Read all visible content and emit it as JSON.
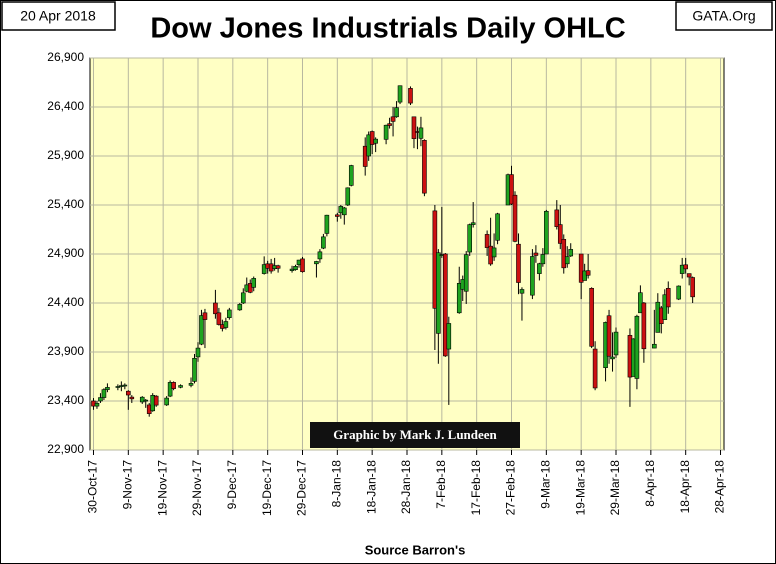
{
  "chart_data": {
    "type": "candlestick",
    "title": "Dow Jones Industrials Daily OHLC",
    "date_label": "20 Apr 2018",
    "source_label": "GATA.Org",
    "credit": "Graphic by Mark J. Lundeen",
    "xlabel": "Source Barron's",
    "up_color": "#1fa31f",
    "down_color": "#cc1111",
    "grid": true,
    "ylim": [
      22900,
      26900
    ],
    "yticks": [
      {
        "value": 22900,
        "label": "22,900"
      },
      {
        "value": 23400,
        "label": "23,400"
      },
      {
        "value": 23900,
        "label": "23,900"
      },
      {
        "value": 24400,
        "label": "24,400"
      },
      {
        "value": 24900,
        "label": "24,900"
      },
      {
        "value": 25400,
        "label": "25,400"
      },
      {
        "value": 25900,
        "label": "25,900"
      },
      {
        "value": 26400,
        "label": "26,400"
      },
      {
        "value": 26900,
        "label": "26,900"
      }
    ],
    "xlim": [
      "2017-10-29",
      "2018-04-29"
    ],
    "xticks": [
      {
        "value": "2017-10-30",
        "label": "30-Oct-17"
      },
      {
        "value": "2017-11-09",
        "label": "9-Nov-17"
      },
      {
        "value": "2017-11-19",
        "label": "19-Nov-17"
      },
      {
        "value": "2017-11-29",
        "label": "29-Nov-17"
      },
      {
        "value": "2017-12-09",
        "label": "9-Dec-17"
      },
      {
        "value": "2017-12-19",
        "label": "19-Dec-17"
      },
      {
        "value": "2017-12-29",
        "label": "29-Dec-17"
      },
      {
        "value": "2018-01-08",
        "label": "8-Jan-18"
      },
      {
        "value": "2018-01-18",
        "label": "18-Jan-18"
      },
      {
        "value": "2018-01-28",
        "label": "28-Jan-18"
      },
      {
        "value": "2018-02-07",
        "label": "7-Feb-18"
      },
      {
        "value": "2018-02-17",
        "label": "17-Feb-18"
      },
      {
        "value": "2018-02-27",
        "label": "27-Feb-18"
      },
      {
        "value": "2018-03-09",
        "label": "9-Mar-18"
      },
      {
        "value": "2018-03-19",
        "label": "19-Mar-18"
      },
      {
        "value": "2018-03-29",
        "label": "29-Mar-18"
      },
      {
        "value": "2018-04-08",
        "label": "8-Apr-18"
      },
      {
        "value": "2018-04-18",
        "label": "18-Apr-18"
      },
      {
        "value": "2018-04-28",
        "label": "28-Apr-18"
      }
    ],
    "x": [
      "2017-10-30",
      "2017-10-31",
      "2017-11-01",
      "2017-11-02",
      "2017-11-03",
      "2017-11-06",
      "2017-11-07",
      "2017-11-08",
      "2017-11-09",
      "2017-11-10",
      "2017-11-13",
      "2017-11-14",
      "2017-11-15",
      "2017-11-16",
      "2017-11-17",
      "2017-11-20",
      "2017-11-21",
      "2017-11-22",
      "2017-11-24",
      "2017-11-27",
      "2017-11-28",
      "2017-11-29",
      "2017-11-30",
      "2017-12-01",
      "2017-12-04",
      "2017-12-05",
      "2017-12-06",
      "2017-12-07",
      "2017-12-08",
      "2017-12-11",
      "2017-12-12",
      "2017-12-13",
      "2017-12-14",
      "2017-12-15",
      "2017-12-18",
      "2017-12-19",
      "2017-12-20",
      "2017-12-21",
      "2017-12-22",
      "2017-12-26",
      "2017-12-27",
      "2017-12-28",
      "2017-12-29",
      "2018-01-02",
      "2018-01-03",
      "2018-01-04",
      "2018-01-05",
      "2018-01-08",
      "2018-01-09",
      "2018-01-10",
      "2018-01-11",
      "2018-01-12",
      "2018-01-16",
      "2018-01-17",
      "2018-01-18",
      "2018-01-19",
      "2018-01-22",
      "2018-01-23",
      "2018-01-24",
      "2018-01-25",
      "2018-01-26",
      "2018-01-29",
      "2018-01-30",
      "2018-01-31",
      "2018-02-01",
      "2018-02-02",
      "2018-02-05",
      "2018-02-06",
      "2018-02-07",
      "2018-02-08",
      "2018-02-09",
      "2018-02-12",
      "2018-02-13",
      "2018-02-14",
      "2018-02-15",
      "2018-02-16",
      "2018-02-20",
      "2018-02-21",
      "2018-02-22",
      "2018-02-23",
      "2018-02-26",
      "2018-02-27",
      "2018-02-28",
      "2018-03-01",
      "2018-03-02",
      "2018-03-05",
      "2018-03-06",
      "2018-03-07",
      "2018-03-08",
      "2018-03-09",
      "2018-03-12",
      "2018-03-13",
      "2018-03-14",
      "2018-03-15",
      "2018-03-16",
      "2018-03-19",
      "2018-03-20",
      "2018-03-21",
      "2018-03-22",
      "2018-03-23",
      "2018-03-26",
      "2018-03-27",
      "2018-03-28",
      "2018-03-29",
      "2018-04-02",
      "2018-04-03",
      "2018-04-04",
      "2018-04-05",
      "2018-04-06",
      "2018-04-09",
      "2018-04-10",
      "2018-04-11",
      "2018-04-12",
      "2018-04-13",
      "2018-04-16",
      "2018-04-17",
      "2018-04-18",
      "2018-04-19",
      "2018-04-20"
    ],
    "open": [
      23400,
      23348,
      23400,
      23435,
      23516,
      23540,
      23550,
      23557,
      23500,
      23440,
      23390,
      23400,
      23360,
      23300,
      23450,
      23360,
      23450,
      23590,
      23540,
      23560,
      23600,
      23850,
      23980,
      24300,
      24400,
      24300,
      24180,
      24150,
      24250,
      24330,
      24400,
      24520,
      24600,
      24560,
      24700,
      24800,
      24800,
      24750,
      24780,
      24730,
      24740,
      24790,
      24850,
      24800,
      24850,
      24960,
      25110,
      25300,
      25320,
      25300,
      25400,
      25600,
      26000,
      25900,
      26150,
      26030,
      26070,
      26230,
      26300,
      26300,
      26450,
      26590,
      26300,
      26150,
      26080,
      26060,
      25340,
      24090,
      24890,
      24900,
      23930,
      24300,
      24540,
      24520,
      24920,
      25200,
      25100,
      24980,
      24870,
      25040,
      25400,
      25710,
      25500,
      25000,
      24500,
      24480,
      24910,
      24700,
      24800,
      24900,
      25350,
      25200,
      25050,
      24800,
      24880,
      24900,
      24630,
      24730,
      24550,
      23930,
      23740,
      24270,
      23830,
      23870,
      24070,
      23650,
      23630,
      24300,
      24400,
      23940,
      24100,
      24350,
      24230,
      24550,
      24440,
      24700,
      24790,
      24700,
      24660
    ],
    "high": [
      23430,
      23400,
      23480,
      23530,
      23580,
      23570,
      23600,
      23580,
      23510,
      23460,
      23450,
      23420,
      23380,
      23480,
      23460,
      23450,
      23610,
      23600,
      23570,
      23640,
      23880,
      24000,
      24330,
      24340,
      24534,
      24350,
      24230,
      24250,
      24350,
      24400,
      24550,
      24660,
      24640,
      24670,
      24876,
      24830,
      24850,
      24860,
      24790,
      24780,
      24790,
      24840,
      24870,
      24830,
      24950,
      25105,
      25300,
      25320,
      25400,
      25380,
      25580,
      25810,
      26090,
      26150,
      26160,
      26090,
      26220,
      26290,
      26400,
      26460,
      26620,
      26610,
      26300,
      26200,
      26300,
      26070,
      25400,
      24950,
      25380,
      24910,
      24260,
      24770,
      24680,
      24930,
      25210,
      25430,
      25140,
      25270,
      25110,
      25320,
      25720,
      25800,
      25540,
      25110,
      24560,
      24950,
      24990,
      24810,
      24960,
      25350,
      25450,
      25400,
      25100,
      24980,
      25010,
      24900,
      24800,
      24900,
      24560,
      24010,
      24210,
      24330,
      24100,
      24150,
      24140,
      24040,
      24280,
      24580,
      24410,
      24330,
      24500,
      24370,
      24540,
      24620,
      24580,
      24860,
      24860,
      24700,
      24670
    ],
    "low": [
      23310,
      23320,
      23380,
      23410,
      23490,
      23510,
      23500,
      23520,
      23310,
      23380,
      23370,
      23330,
      23240,
      23290,
      23340,
      23350,
      23440,
      23510,
      23530,
      23540,
      23580,
      23800,
      23970,
      23940,
      24240,
      24170,
      24110,
      24130,
      24230,
      24320,
      24390,
      24510,
      24500,
      24520,
      24690,
      24700,
      24700,
      24730,
      24710,
      24710,
      24730,
      24760,
      24710,
      24660,
      24810,
      24950,
      25080,
      25230,
      25260,
      25200,
      25390,
      25590,
      25700,
      25850,
      25920,
      25940,
      26020,
      26180,
      26100,
      26290,
      26430,
      26420,
      25980,
      25970,
      26000,
      25490,
      23920,
      23780,
      24860,
      23850,
      23360,
      24290,
      24420,
      24390,
      24880,
      25170,
      24880,
      24780,
      24830,
      25000,
      25400,
      25400,
      25020,
      24490,
      24220,
      24440,
      24810,
      24630,
      24770,
      24900,
      25150,
      24950,
      24700,
      24760,
      24870,
      24440,
      24630,
      24650,
      23940,
      23510,
      23600,
      23780,
      23700,
      23840,
      23340,
      23650,
      23520,
      24300,
      23790,
      23940,
      24100,
      24090,
      24230,
      24290,
      24430,
      24650,
      24700,
      24580,
      24400
    ],
    "close": [
      23348,
      23377,
      23435,
      23516,
      23539,
      23548,
      23557,
      23563,
      23461,
      23422,
      23439,
      23409,
      23271,
      23458,
      23358,
      23430,
      23590,
      23526,
      23558,
      23580,
      23836,
      23940,
      24272,
      24231,
      24290,
      24180,
      24140,
      24211,
      24329,
      24386,
      24504,
      24585,
      24509,
      24651,
      24792,
      24754,
      24726,
      24782,
      24754,
      24746,
      24774,
      24838,
      24719,
      24824,
      24922,
      25075,
      25296,
      25283,
      25386,
      25370,
      25575,
      25803,
      25793,
      26116,
      26017,
      26072,
      26214,
      26211,
      26253,
      26393,
      26617,
      26440,
      26077,
      26149,
      26187,
      25521,
      24346,
      24913,
      24893,
      23860,
      24191,
      24601,
      24640,
      24893,
      25200,
      25219,
      24965,
      24798,
      24962,
      25310,
      25709,
      25410,
      25029,
      24609,
      24538,
      24875,
      24885,
      24801,
      24895,
      25336,
      25179,
      25008,
      24759,
      24873,
      24947,
      24611,
      24727,
      24683,
      23958,
      23533,
      24202,
      23857,
      23849,
      24103,
      23644,
      24034,
      24265,
      24505,
      23933,
      23979,
      24408,
      24189,
      24484,
      24360,
      24573,
      24786,
      24748,
      24665,
      24463
    ]
  }
}
